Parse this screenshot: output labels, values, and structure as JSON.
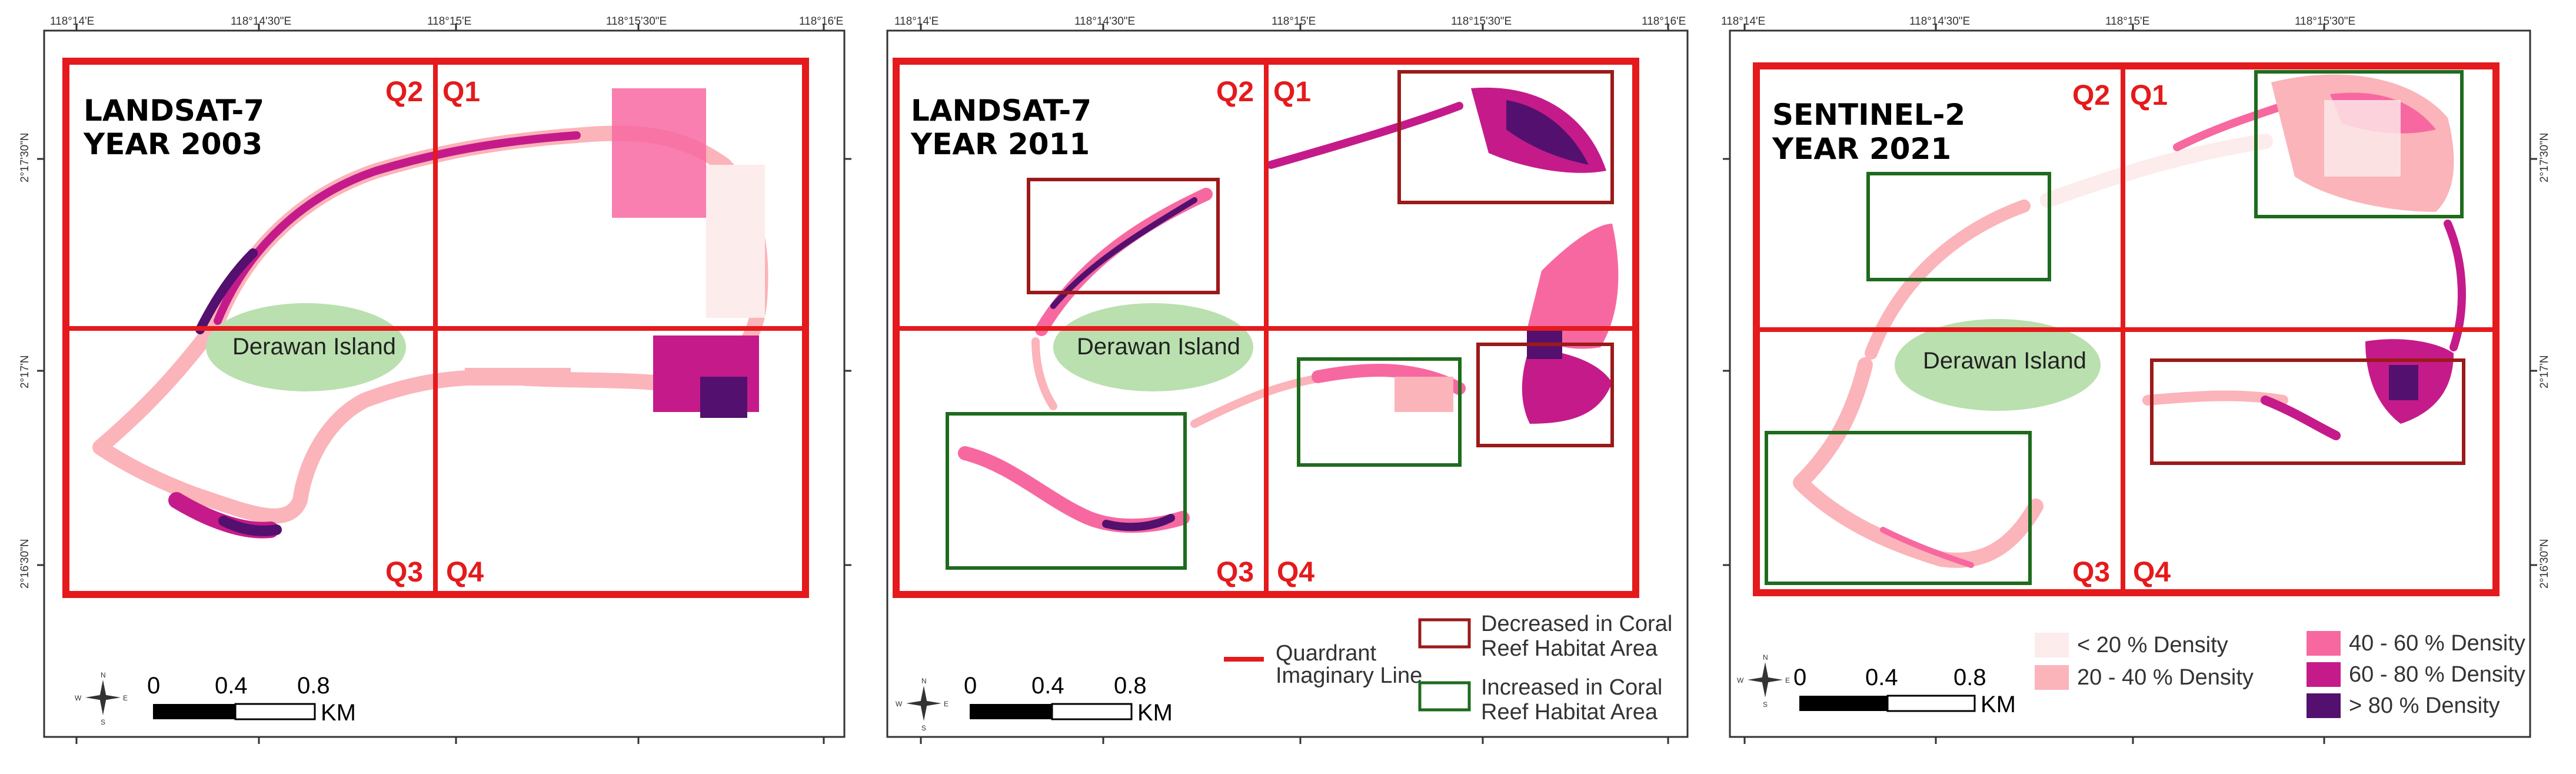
{
  "colors": {
    "quadrant": "#e41a1c",
    "decreased": "#9b1a1a",
    "increased": "#1e6b1e",
    "island": "#b9e0ae",
    "d1": "#fdecec",
    "d2": "#fbb4b9",
    "d3": "#f768a1",
    "d4": "#c51b8a",
    "d5": "#54106e"
  },
  "panels": [
    {
      "title": [
        "LANDSAT-7",
        "YEAR 2003"
      ],
      "x_ticks": [
        "118°14'E",
        "118°14'30\"E",
        "118°15'E",
        "118°15'30\"E",
        "118°16'E"
      ],
      "y_ticks": [
        "2°17'30\"N",
        "2°17'N",
        "2°16'30\"N"
      ],
      "quadrants": [
        "Q1",
        "Q2",
        "Q3",
        "Q4"
      ],
      "island_label": "Derawan Island",
      "scale": [
        "0",
        "0.4",
        "0.8",
        "KM"
      ]
    },
    {
      "title": [
        "LANDSAT-7",
        "YEAR 2011"
      ],
      "x_ticks": [
        "118°14'E",
        "118°14'30\"E",
        "118°15'E",
        "118°15'30\"E",
        "118°16'E"
      ],
      "y_ticks": [],
      "quadrants": [
        "Q1",
        "Q2",
        "Q3",
        "Q4"
      ],
      "island_label": "Derawan Island",
      "scale": [
        "0",
        "0.4",
        "0.8",
        "KM"
      ]
    },
    {
      "title": [
        "SENTINEL-2",
        "YEAR 2021"
      ],
      "x_ticks": [
        "118°14'E",
        "118°14'30\"E",
        "118°15'E",
        "118°15'30\"E"
      ],
      "y_ticks": [
        "2°17'30\"N",
        "2°17'N",
        "2°16'30\"N"
      ],
      "quadrants": [
        "Q1",
        "Q2",
        "Q3",
        "Q4"
      ],
      "island_label": "Derawan Island",
      "scale": [
        "0",
        "0.4",
        "0.8",
        "KM"
      ]
    }
  ],
  "legend_middle": {
    "quadrant_line": [
      "Quardrant",
      "Imaginary Line"
    ],
    "decreased": [
      "Decreased in Coral",
      "Reef Habitat Area"
    ],
    "increased": [
      "Increased in Coral",
      "Reef Habitat Area"
    ]
  },
  "legend_right": {
    "density": [
      "< 20 % Density",
      "20 - 40 % Density",
      "40 - 60 % Density",
      "60 - 80 % Density",
      "> 80 % Density"
    ]
  },
  "compass": [
    "N",
    "S",
    "E",
    "W"
  ]
}
